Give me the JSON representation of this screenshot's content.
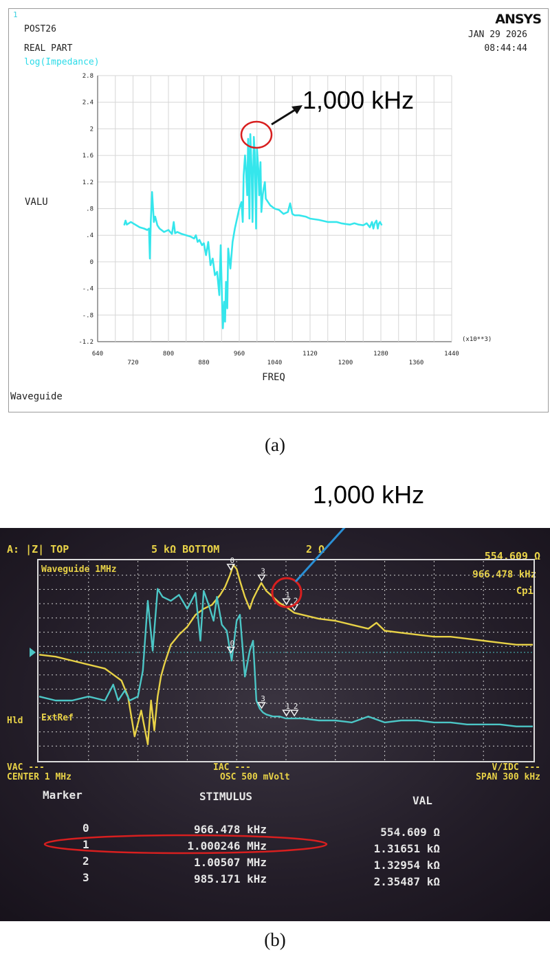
{
  "panel_a": {
    "corner_number": "1",
    "title_lines": [
      "POST26",
      "REAL PART"
    ],
    "series_label": "log(Impedance)",
    "logo": "ANSYS",
    "date": "JAN 29 2026",
    "time": "08:44:44",
    "bottom_label": "Waveguide",
    "annotation": "1,000 kHz",
    "caption": "(a)"
  },
  "panel_b": {
    "annotation": "1,000 kHz",
    "caption": "(b)",
    "header_left": "A: |Z| TOP",
    "header_mid": "5 kΩ BOTTOM",
    "header_mid2": "2 Ω",
    "header_right_value": "554.609 Ω",
    "header_right_freq": "966.478 kHz",
    "mode": "Cpi",
    "trace_title": "Waveguide 1MHz",
    "hld": "Hld",
    "extref": "ExtRef",
    "bottom_left": "VAC ---",
    "center": "CENTER 1 MHz",
    "iac": "IAC ---",
    "osc": "OSC 500 mVolt",
    "vidc": "V/IDC ---",
    "span": "SPAN 300 kHz",
    "table_headers": [
      "Marker",
      "STIMULUS",
      "VAL"
    ],
    "table_rows": [
      [
        "0",
        "966.478 kHz",
        "554.609 Ω"
      ],
      [
        "1",
        "1.000246 MHz",
        "1.31651 kΩ"
      ],
      [
        "2",
        "1.00507 MHz",
        "1.32954 kΩ"
      ],
      [
        "3",
        "985.171 kHz",
        "2.35487 kΩ"
      ]
    ],
    "marker_labels": [
      "0",
      "1",
      "2",
      "3"
    ],
    "colors": {
      "yellow": "#e8d247",
      "cyan": "#4cc6c6",
      "red": "#d81f1f",
      "arrow": "#2a8fd4"
    }
  },
  "chart_data": [
    {
      "type": "line",
      "title": "",
      "xlabel": "FREQ",
      "ylabel": "VALU",
      "x_multiplier_label": "(x10**3)",
      "xlim": [
        640,
        1440
      ],
      "ylim": [
        -1.2,
        2.8
      ],
      "x_ticks_top_row": [
        "640",
        "800",
        "960",
        "1120",
        "1280",
        "1440"
      ],
      "x_ticks_bottom_row": [
        "720",
        "880",
        "1040",
        "1200",
        "1360"
      ],
      "y_ticks": [
        "2.8",
        "2.4",
        "2",
        "1.6",
        "1.2",
        ".8",
        ".4",
        "0",
        "-.4",
        "-.8",
        "-1.2"
      ],
      "color": "#35e6ec",
      "grid": true,
      "series": [
        {
          "x": [
            700,
            703,
            706,
            715,
            725,
            735,
            745,
            752,
            756,
            758,
            760,
            763,
            767,
            770,
            775,
            780,
            790,
            800,
            808,
            812,
            815,
            820,
            830,
            840,
            850,
            858,
            862,
            866,
            870,
            876,
            880,
            885,
            890,
            895,
            900,
            905,
            910,
            915,
            918,
            921,
            923,
            926,
            928,
            930,
            933,
            935,
            940,
            945,
            950,
            955,
            960,
            965,
            968,
            970,
            973,
            975,
            978,
            980,
            983,
            985,
            988,
            990,
            993,
            995,
            998,
            1000,
            1003,
            1005,
            1008,
            1010,
            1013,
            1015,
            1018,
            1020,
            1025,
            1030,
            1040,
            1050,
            1060,
            1070,
            1075,
            1080,
            1085,
            1095,
            1110,
            1120,
            1140,
            1160,
            1180,
            1190,
            1200,
            1210,
            1220,
            1230,
            1240,
            1248,
            1255,
            1260,
            1263,
            1266,
            1270,
            1273,
            1275,
            1278,
            1282
          ],
          "y": [
            0.55,
            0.62,
            0.56,
            0.6,
            0.56,
            0.52,
            0.5,
            0.48,
            0.5,
            0.05,
            0.6,
            1.05,
            0.6,
            0.68,
            0.55,
            0.5,
            0.45,
            0.48,
            0.42,
            0.6,
            0.43,
            0.45,
            0.42,
            0.4,
            0.38,
            0.35,
            0.4,
            0.3,
            0.33,
            0.25,
            0.28,
            0.1,
            0.3,
            -0.05,
            0.05,
            -0.2,
            -0.15,
            -0.5,
            0.25,
            -0.55,
            -1.0,
            -0.6,
            -0.9,
            -0.3,
            -0.7,
            0.2,
            -0.1,
            0.3,
            0.5,
            0.65,
            0.8,
            0.9,
            0.6,
            1.3,
            1.6,
            1.4,
            1.0,
            1.85,
            0.65,
            1.92,
            1.4,
            0.6,
            1.88,
            1.65,
            0.5,
            1.7,
            1.4,
            1.0,
            1.5,
            0.75,
            1.0,
            1.1,
            1.2,
            0.95,
            0.9,
            0.85,
            0.8,
            0.78,
            0.72,
            0.75,
            0.88,
            0.72,
            0.7,
            0.7,
            0.68,
            0.65,
            0.63,
            0.6,
            0.6,
            0.58,
            0.57,
            0.56,
            0.58,
            0.56,
            0.55,
            0.58,
            0.52,
            0.6,
            0.5,
            0.58,
            0.62,
            0.5,
            0.57,
            0.6,
            0.55
          ]
        }
      ]
    },
    {
      "type": "line",
      "title": "",
      "xlabel": "",
      "ylabel": "",
      "xlim": [
        850,
        1150
      ],
      "ylim": [
        0,
        10
      ],
      "grid": true,
      "series": [
        {
          "color": "#e8d247",
          "x": [
            850,
            860,
            870,
            880,
            890,
            895,
            900,
            904,
            908,
            912,
            916,
            918,
            920,
            922,
            924,
            926,
            928,
            930,
            935,
            940,
            945,
            950,
            955,
            960,
            963,
            966,
            968,
            970,
            972,
            975,
            978,
            980,
            983,
            985,
            988,
            992,
            996,
            1000,
            1005,
            1010,
            1020,
            1030,
            1040,
            1050,
            1055,
            1060,
            1070,
            1080,
            1090,
            1100,
            1110,
            1120,
            1130,
            1140,
            1150
          ],
          "y": [
            5.3,
            5.2,
            5.0,
            4.8,
            4.6,
            4.3,
            4.0,
            3.2,
            1.2,
            2.5,
            0.8,
            3.0,
            1.5,
            3.2,
            4.2,
            4.8,
            5.3,
            5.8,
            6.3,
            6.7,
            7.3,
            7.6,
            7.8,
            8.3,
            8.7,
            9.3,
            9.8,
            9.6,
            9.0,
            8.2,
            7.6,
            8.1,
            8.6,
            8.9,
            8.5,
            8.2,
            7.9,
            7.7,
            7.4,
            7.3,
            7.1,
            7.0,
            6.8,
            6.6,
            6.9,
            6.5,
            6.4,
            6.3,
            6.2,
            6.2,
            6.1,
            6.0,
            5.9,
            5.8,
            5.8
          ]
        },
        {
          "color": "#4cc6c6",
          "x": [
            850,
            860,
            870,
            880,
            890,
            895,
            898,
            902,
            905,
            910,
            913,
            916,
            919,
            922,
            925,
            930,
            935,
            940,
            945,
            948,
            950,
            953,
            956,
            958,
            961,
            964,
            967,
            970,
            972,
            975,
            978,
            980,
            982,
            984,
            986,
            988,
            992,
            996,
            1000,
            1010,
            1020,
            1030,
            1040,
            1050,
            1060,
            1070,
            1080,
            1090,
            1100,
            1110,
            1120,
            1130,
            1140,
            1150
          ],
          "y": [
            3.2,
            3.0,
            3.0,
            3.2,
            3.0,
            3.8,
            3.0,
            3.5,
            3.0,
            3.2,
            4.5,
            8.0,
            5.5,
            8.6,
            8.2,
            8.0,
            8.3,
            7.6,
            8.4,
            6.0,
            8.5,
            7.8,
            7.0,
            8.2,
            6.8,
            6.5,
            5.0,
            7.0,
            7.3,
            4.2,
            5.5,
            6.0,
            3.0,
            2.6,
            2.4,
            2.3,
            2.2,
            2.2,
            2.1,
            2.1,
            2.0,
            2.0,
            1.9,
            2.2,
            1.9,
            2.0,
            2.0,
            1.9,
            1.9,
            1.8,
            1.8,
            1.8,
            1.7,
            1.7
          ]
        }
      ],
      "markers": [
        {
          "label": "0",
          "x": 966.478,
          "value": "554.609 Ω"
        },
        {
          "label": "1",
          "x": 1000.246,
          "value": "1.31651 kΩ"
        },
        {
          "label": "2",
          "x": 1005.07,
          "value": "1.32954 kΩ"
        },
        {
          "label": "3",
          "x": 985.171,
          "value": "2.35487 kΩ"
        }
      ]
    }
  ]
}
